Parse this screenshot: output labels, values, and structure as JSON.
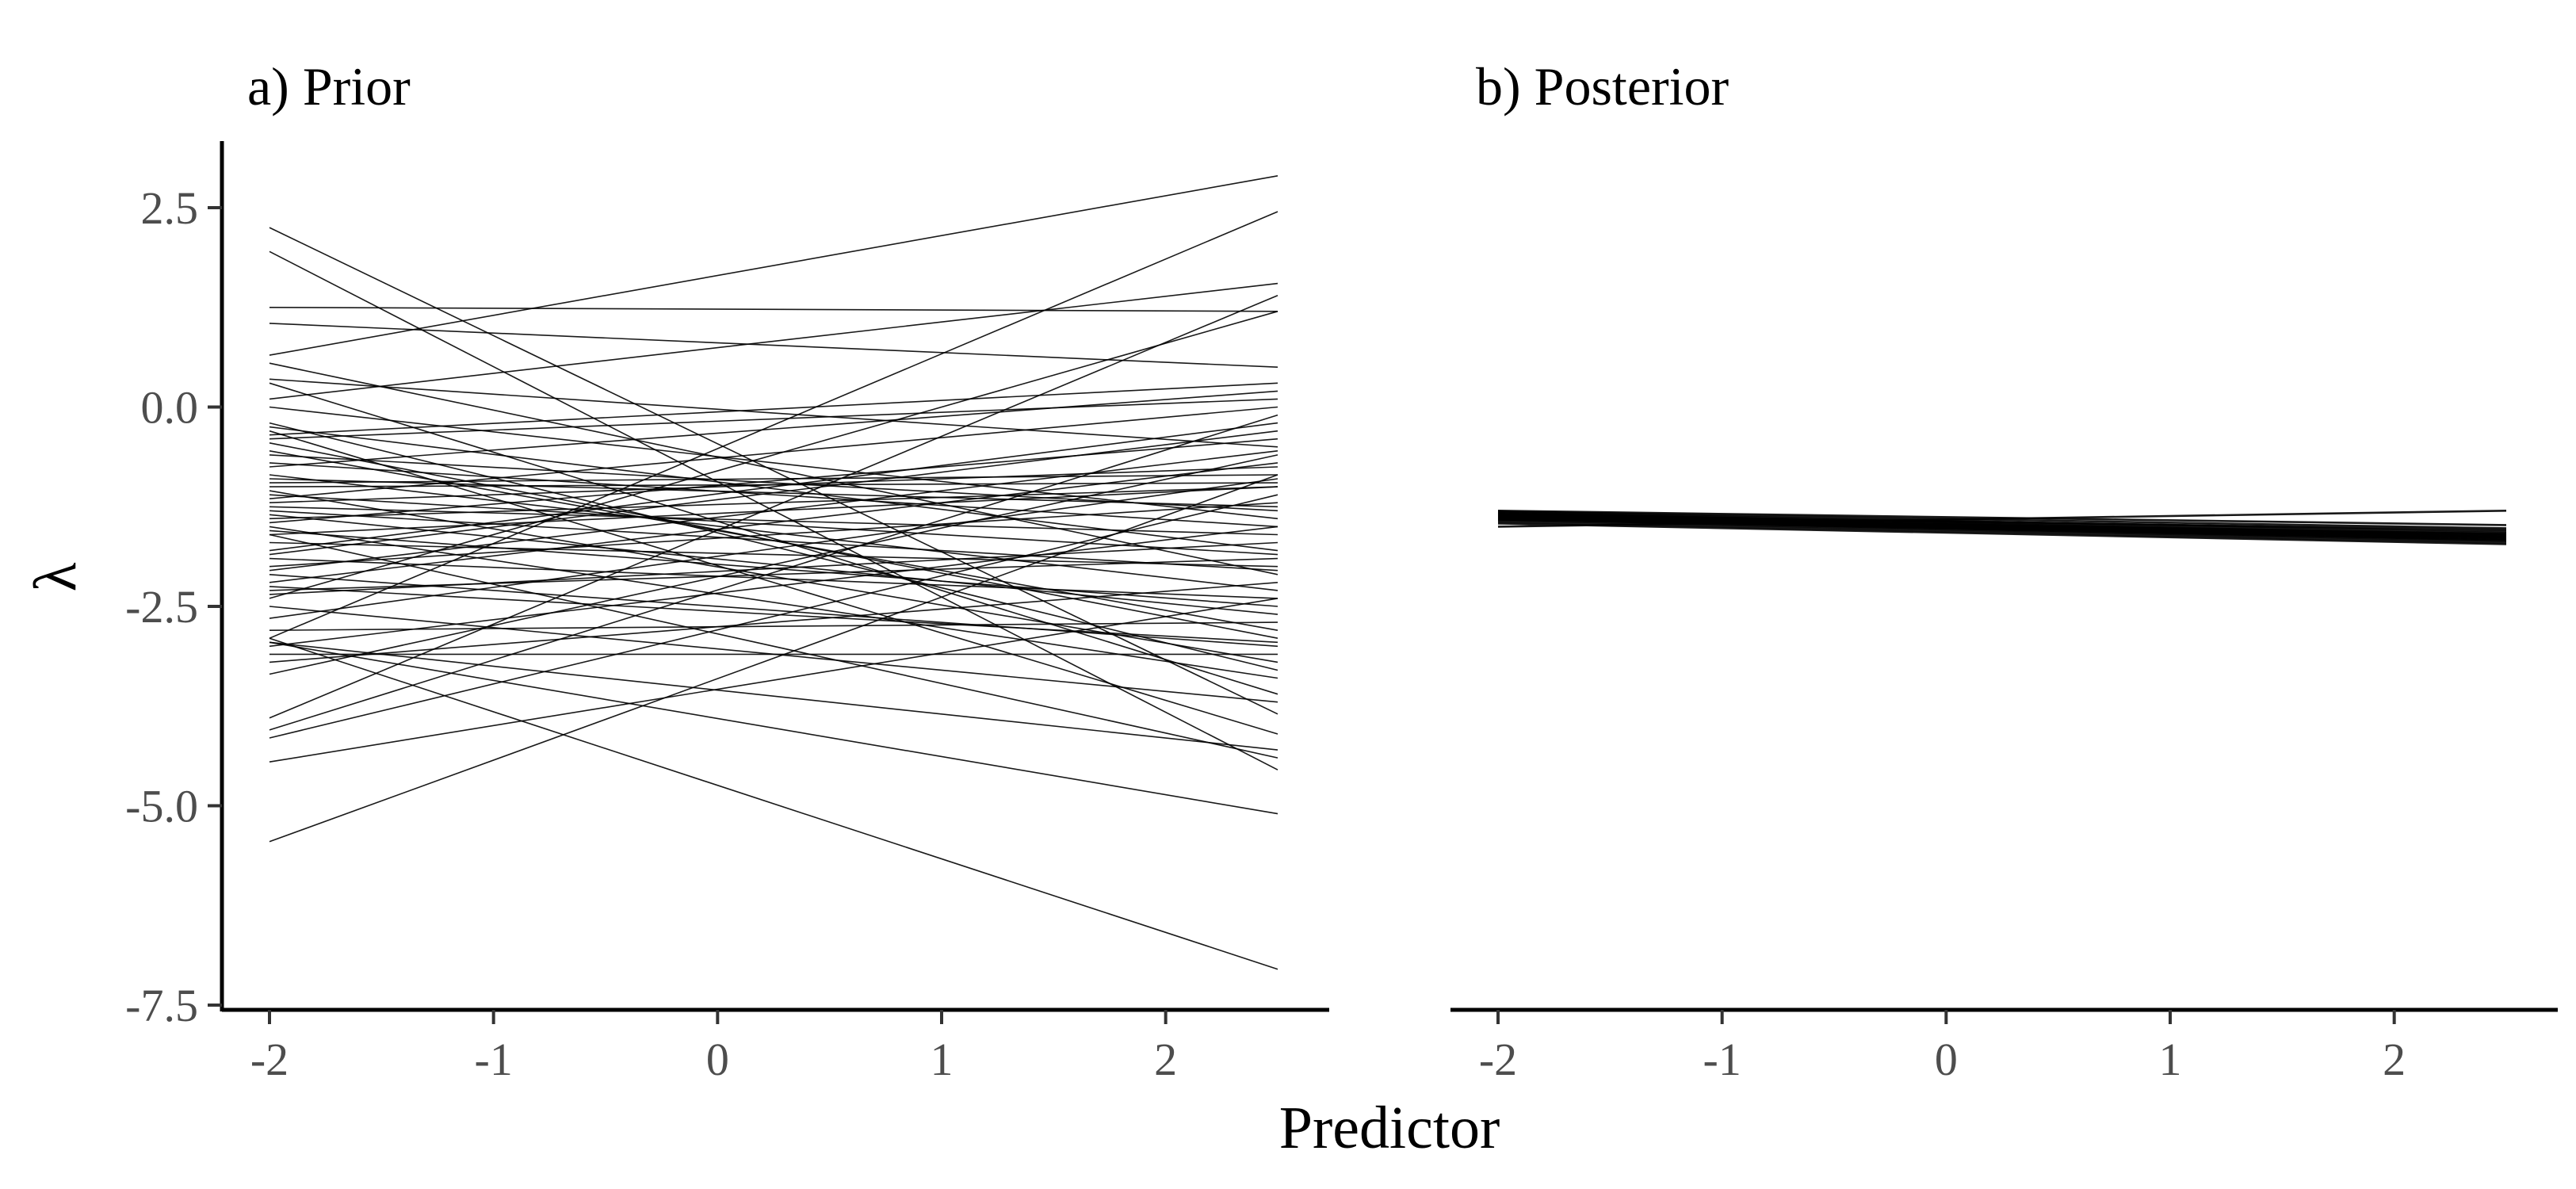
{
  "chart_data": [
    {
      "type": "line",
      "panel_id": "prior",
      "title": "a) Prior",
      "xlabel": "Predictor",
      "ylabel": "λ",
      "xlim": [
        -2,
        2.5
      ],
      "ylim": [
        -7.5,
        3.3
      ],
      "x_ticks": [
        -2,
        -1,
        0,
        1,
        2
      ],
      "x_tick_labels": [
        "-2",
        "-1",
        "0",
        "1",
        "2"
      ],
      "y_ticks": [
        2.5,
        0.0,
        -2.5,
        -5.0,
        -7.5
      ],
      "y_tick_labels": [
        "2.5",
        "0.0",
        "-2.5",
        "-5.0",
        "-7.5"
      ],
      "line_color": "#000000",
      "x": [
        -2,
        2.5
      ],
      "series": [
        {
          "values": [
            2.25,
            -3.85
          ]
        },
        {
          "values": [
            1.95,
            -4.55
          ]
        },
        {
          "values": [
            1.25,
            1.2
          ]
        },
        {
          "values": [
            1.05,
            0.5
          ]
        },
        {
          "values": [
            0.65,
            2.9
          ]
        },
        {
          "values": [
            0.55,
            -2.1
          ]
        },
        {
          "values": [
            0.35,
            -0.5
          ]
        },
        {
          "values": [
            0.3,
            -3.6
          ]
        },
        {
          "values": [
            0.1,
            1.55
          ]
        },
        {
          "values": [
            -0.25,
            -1.8
          ]
        },
        {
          "values": [
            -0.35,
            0.3
          ]
        },
        {
          "values": [
            -0.45,
            -2.9
          ]
        },
        {
          "values": [
            -0.6,
            -1.3
          ]
        },
        {
          "values": [
            -0.75,
            0.2
          ]
        },
        {
          "values": [
            -0.85,
            -2.3
          ]
        },
        {
          "values": [
            -0.95,
            -0.85
          ]
        },
        {
          "values": [
            -1.05,
            -3.2
          ]
        },
        {
          "values": [
            -1.15,
            0.0
          ]
        },
        {
          "values": [
            -1.25,
            -1.6
          ]
        },
        {
          "values": [
            -1.35,
            -2.6
          ]
        },
        {
          "values": [
            -1.45,
            -0.4
          ]
        },
        {
          "values": [
            -1.5,
            -3.4
          ]
        },
        {
          "values": [
            -1.6,
            -1.0
          ]
        },
        {
          "values": [
            -1.7,
            -2.0
          ]
        },
        {
          "values": [
            -1.8,
            -0.2
          ]
        },
        {
          "values": [
            -1.9,
            -2.4
          ]
        },
        {
          "values": [
            -2.0,
            -1.2
          ]
        },
        {
          "values": [
            -2.1,
            -3.0
          ]
        },
        {
          "values": [
            -2.2,
            -0.7
          ]
        },
        {
          "values": [
            -2.3,
            -1.9
          ]
        },
        {
          "values": [
            -2.4,
            1.2
          ]
        },
        {
          "values": [
            -2.5,
            -3.7
          ]
        },
        {
          "values": [
            -2.65,
            -0.9
          ]
        },
        {
          "values": [
            -2.8,
            -2.7
          ]
        },
        {
          "values": [
            -2.9,
            2.45
          ]
        },
        {
          "values": [
            -2.95,
            -4.3
          ]
        },
        {
          "values": [
            -3.0,
            -1.5
          ]
        },
        {
          "values": [
            -3.1,
            -3.1
          ]
        },
        {
          "values": [
            -3.2,
            -2.2
          ]
        },
        {
          "values": [
            -3.35,
            -0.6
          ]
        },
        {
          "values": [
            -3.9,
            1.4
          ]
        },
        {
          "values": [
            -4.05,
            -0.1
          ]
        },
        {
          "values": [
            -4.15,
            -1.1
          ]
        },
        {
          "values": [
            -4.45,
            -2.4
          ]
        },
        {
          "values": [
            -5.45,
            -0.85
          ]
        },
        {
          "values": [
            -2.9,
            -7.05
          ]
        },
        {
          "values": [
            -2.95,
            -5.1
          ]
        },
        {
          "values": [
            -0.3,
            -4.1
          ]
        },
        {
          "values": [
            -1.6,
            -4.4
          ]
        },
        {
          "values": [
            -0.55,
            -2.8
          ]
        },
        {
          "values": [
            -1.1,
            -1.85
          ]
        },
        {
          "values": [
            -0.4,
            0.1
          ]
        },
        {
          "values": [
            -1.85,
            -0.3
          ]
        },
        {
          "values": [
            -2.35,
            -1.7
          ]
        },
        {
          "values": [
            0.0,
            -1.4
          ]
        },
        {
          "values": [
            -1.3,
            -2.05
          ]
        },
        {
          "values": [
            -0.2,
            -3.3
          ]
        },
        {
          "values": [
            -2.05,
            -0.55
          ]
        },
        {
          "values": [
            -1.4,
            -1.0
          ]
        },
        {
          "values": [
            -0.7,
            -1.5
          ]
        },
        {
          "values": [
            -1.0,
            -0.95
          ]
        },
        {
          "values": [
            -1.55,
            -2.5
          ]
        },
        {
          "values": [
            -0.9,
            -1.25
          ]
        },
        {
          "values": [
            -2.25,
            -2.95
          ]
        },
        {
          "values": [
            -1.2,
            -0.75
          ]
        }
      ]
    },
    {
      "type": "line",
      "panel_id": "posterior",
      "title": "b) Posterior",
      "xlabel": "Predictor",
      "ylabel": "",
      "xlim": [
        -2,
        2.5
      ],
      "ylim": [
        -7.5,
        3.3
      ],
      "x_ticks": [
        -2,
        -1,
        0,
        1,
        2
      ],
      "x_tick_labels": [
        "-2",
        "-1",
        "0",
        "1",
        "2"
      ],
      "y_ticks": [],
      "y_tick_labels": [],
      "line_color": "#000000",
      "x": [
        -2,
        2.5
      ],
      "series": [
        {
          "values": [
            -1.3,
            -1.48
          ]
        },
        {
          "values": [
            -1.31,
            -1.52
          ]
        },
        {
          "values": [
            -1.32,
            -1.56
          ]
        },
        {
          "values": [
            -1.33,
            -1.58
          ]
        },
        {
          "values": [
            -1.34,
            -1.6
          ]
        },
        {
          "values": [
            -1.35,
            -1.61
          ]
        },
        {
          "values": [
            -1.36,
            -1.62
          ]
        },
        {
          "values": [
            -1.37,
            -1.63
          ]
        },
        {
          "values": [
            -1.38,
            -1.64
          ]
        },
        {
          "values": [
            -1.39,
            -1.65
          ]
        },
        {
          "values": [
            -1.4,
            -1.66
          ]
        },
        {
          "values": [
            -1.41,
            -1.67
          ]
        },
        {
          "values": [
            -1.42,
            -1.68
          ]
        },
        {
          "values": [
            -1.44,
            -1.7
          ]
        },
        {
          "values": [
            -1.46,
            -1.72
          ]
        },
        {
          "values": [
            -1.35,
            -1.54
          ]
        },
        {
          "values": [
            -1.38,
            -1.59
          ]
        },
        {
          "values": [
            -1.41,
            -1.63
          ]
        },
        {
          "values": [
            -1.5,
            -1.3
          ]
        }
      ]
    }
  ],
  "figure": {
    "xlabel": "Predictor"
  }
}
